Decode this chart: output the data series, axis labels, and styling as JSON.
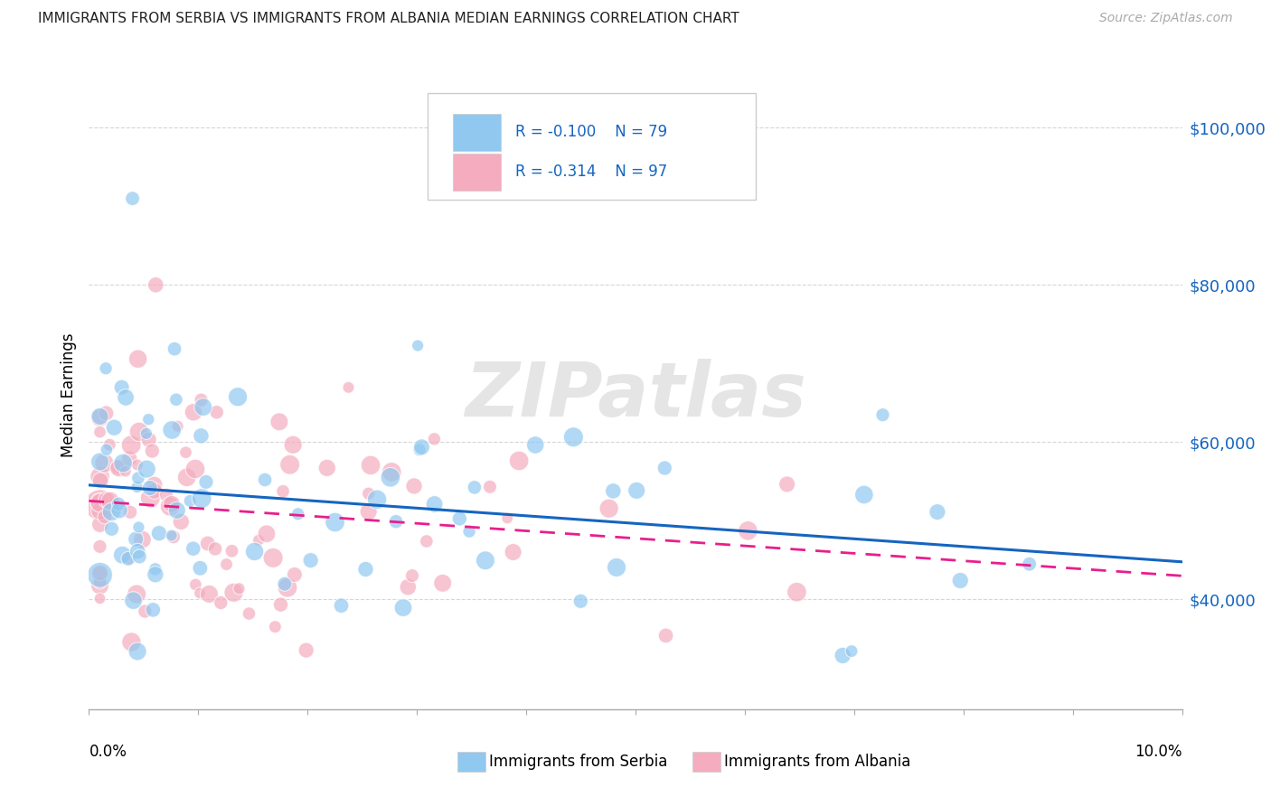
{
  "title": "IMMIGRANTS FROM SERBIA VS IMMIGRANTS FROM ALBANIA MEDIAN EARNINGS CORRELATION CHART",
  "source": "Source: ZipAtlas.com",
  "ylabel": "Median Earnings",
  "xlim": [
    0.0,
    0.1
  ],
  "ylim": [
    26000,
    106000
  ],
  "yticks": [
    40000,
    60000,
    80000,
    100000
  ],
  "ytick_labels": [
    "$40,000",
    "$60,000",
    "$80,000",
    "$100,000"
  ],
  "serbia_color": "#90C8F0",
  "albania_color": "#F4ACBE",
  "serbia_line_color": "#1565C0",
  "albania_line_color": "#E91E8C",
  "serbia_R": "-0.100",
  "serbia_N": "79",
  "albania_R": "-0.314",
  "albania_N": "97",
  "watermark": "ZIPatlas",
  "grid_color": "#cccccc",
  "label_color": "#1565C0"
}
